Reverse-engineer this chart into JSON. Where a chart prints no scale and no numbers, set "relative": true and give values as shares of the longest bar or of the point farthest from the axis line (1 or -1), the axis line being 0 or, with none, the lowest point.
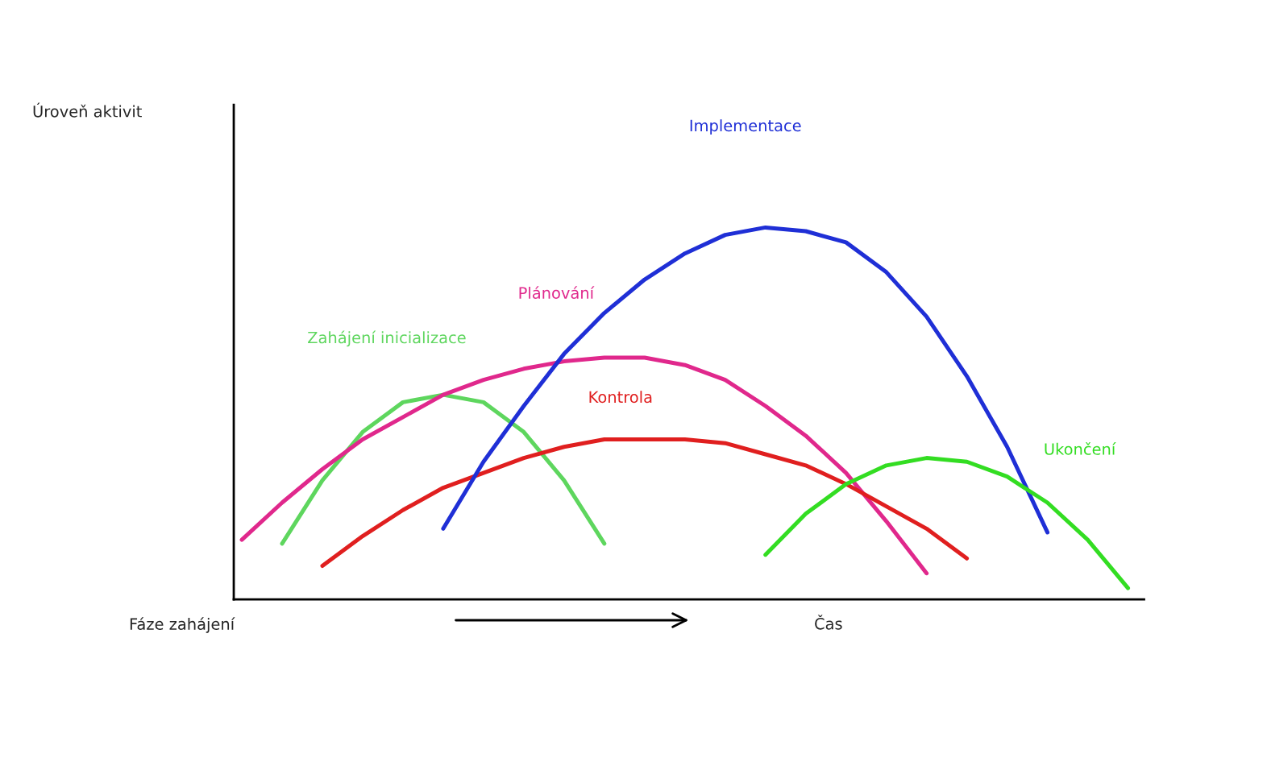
{
  "chart_data": {
    "type": "line",
    "relative": true,
    "legend": false,
    "categories": [
      null,
      null,
      null,
      null,
      null,
      null,
      null,
      null,
      null,
      null,
      null,
      null,
      null,
      null,
      null,
      null,
      null,
      null,
      null,
      null,
      null,
      null,
      null
    ],
    "annotations": [
      "Úroveň aktivit",
      "Fáze zahájení",
      "Čas"
    ],
    "series": [
      {
        "name": "Zahájení inicializace",
        "color": "#5ed65e",
        "values": [
          null,
          0.15,
          0.32,
          0.45,
          0.53,
          0.55,
          0.53,
          0.45,
          0.32,
          0.15,
          null,
          null,
          null,
          null,
          null,
          null,
          null,
          null,
          null,
          null,
          null,
          null,
          null
        ]
      },
      {
        "name": "Plánování",
        "color": "#e0288c",
        "values": [
          0.16,
          0.26,
          0.35,
          0.43,
          0.49,
          0.55,
          0.59,
          0.62,
          0.64,
          0.65,
          0.65,
          0.63,
          0.59,
          0.52,
          0.44,
          0.34,
          0.21,
          0.07,
          null,
          null,
          null,
          null,
          null
        ]
      },
      {
        "name": "Kontrola",
        "color": "#e01f1f",
        "values": [
          null,
          null,
          0.09,
          0.17,
          0.24,
          0.3,
          0.34,
          0.38,
          0.41,
          0.43,
          0.43,
          0.43,
          0.42,
          0.39,
          0.36,
          0.31,
          0.25,
          0.19,
          0.11,
          null,
          null,
          null,
          null
        ]
      },
      {
        "name": "Implementace",
        "color": "#1f2fd6",
        "values": [
          null,
          null,
          null,
          null,
          null,
          0.19,
          0.37,
          0.52,
          0.66,
          0.77,
          0.86,
          0.93,
          0.98,
          1.0,
          0.99,
          0.96,
          0.88,
          0.76,
          0.6,
          0.41,
          0.18,
          null,
          null
        ]
      },
      {
        "name": "Ukončení",
        "color": "#33dd22",
        "values": [
          null,
          null,
          null,
          null,
          null,
          null,
          null,
          null,
          null,
          null,
          null,
          null,
          null,
          0.12,
          0.23,
          0.31,
          0.36,
          0.38,
          0.37,
          0.33,
          0.26,
          0.16,
          0.03
        ]
      }
    ]
  }
}
